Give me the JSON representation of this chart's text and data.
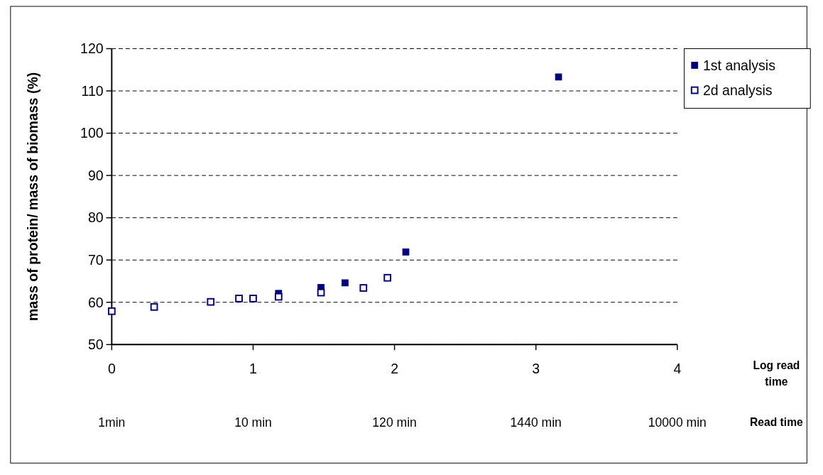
{
  "chart_data": {
    "type": "scatter",
    "ylabel": "mass of protein/ mass of biomass (%)",
    "xlim": [
      0,
      4
    ],
    "xticks": [
      0,
      1,
      2,
      3,
      4
    ],
    "annotations": [
      "Log read time",
      "1min",
      "10 min",
      "120 min",
      "1440 min",
      "10000 min",
      "Read time"
    ],
    "ylim": [
      50,
      120
    ],
    "yticks": [
      50,
      60,
      70,
      80,
      90,
      100,
      110,
      120
    ],
    "grid": "y",
    "legend": "right",
    "marker": "square",
    "series": [
      {
        "name": "1st analysis",
        "color": "#000080",
        "x": [
          1.18,
          1.48,
          1.65,
          2.08,
          3.16
        ],
        "values": [
          62.1,
          63.5,
          64.6,
          71.9,
          113.3
        ]
      },
      {
        "name": "2d analysis",
        "color": "#000080",
        "x": [
          0,
          0.3,
          0.7,
          0.9,
          1.0,
          1.18,
          1.48,
          1.78,
          1.95
        ],
        "values": [
          57.9,
          58.9,
          60.1,
          60.9,
          60.9,
          61.3,
          62.3,
          63.4,
          65.8
        ]
      }
    ]
  }
}
